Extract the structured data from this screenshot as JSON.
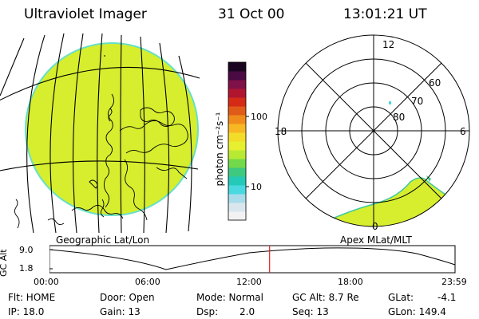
{
  "header": {
    "instrument": "Ultraviolet Imager",
    "date": "31 Oct 00",
    "time": "13:01:21 UT"
  },
  "colorbar": {
    "unit_label": "photon cm⁻²s⁻¹",
    "tick_100": "100",
    "tick_10": "10",
    "colors": [
      "#f2f2f2",
      "#d9e6ee",
      "#a8dcea",
      "#4ad9e0",
      "#24c9b8",
      "#3ec980",
      "#72d94a",
      "#b8ea34",
      "#e6ef30",
      "#f3dc2a",
      "#f7b824",
      "#ef8c1c",
      "#e05a18",
      "#d42a16",
      "#b01530",
      "#801048",
      "#4a0a44",
      "#1a0520"
    ]
  },
  "left_panel": {
    "caption": "Geographic Lat/Lon",
    "fill": "#d6ee2e",
    "rim": "#67e0c8"
  },
  "right_panel": {
    "caption": "Apex MLat/MLT",
    "mlt_labels": {
      "top": "12",
      "left": "18",
      "right": "6",
      "bottom": "0"
    },
    "lat_labels": [
      "60",
      "70",
      "80"
    ]
  },
  "timeline": {
    "ylabel": "GC Alt",
    "y_ticks": [
      "9.0",
      "1.8"
    ],
    "x_ticks": [
      "00:00",
      "06:00",
      "12:00",
      "18:00",
      "23:59"
    ],
    "marker_time": "13:01",
    "marker_color": "#e02020"
  },
  "status": {
    "flt": "Flt: HOME",
    "door": "Door: Open",
    "mode": "Mode: Normal",
    "gc_alt": "GC Alt: 8.7 Re",
    "glat": "GLat:",
    "glat_val": "-4.1",
    "ip": "IP: 18.0",
    "gain": "Gain: 13",
    "dsp": "Dsp:",
    "dsp_val": "2.0",
    "seq": "Seq: 13",
    "glon": "GLon: 149.4"
  }
}
